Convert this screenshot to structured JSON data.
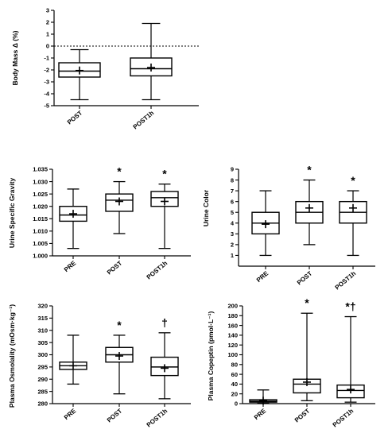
{
  "chart_data": [
    {
      "type": "boxplot",
      "ylabel": "Body Mass Δ (%)",
      "ylim": [
        -5,
        3
      ],
      "yticks": [
        3,
        2,
        1,
        0,
        -1,
        -2,
        -3,
        -4,
        -5
      ],
      "reference_line": 0,
      "categories": [
        "POST",
        "POST1h"
      ],
      "boxes": [
        {
          "min": -4.5,
          "q1": -2.6,
          "median": -2.1,
          "q3": -1.4,
          "max": -0.3,
          "mean": -2.05,
          "sig": ""
        },
        {
          "min": -4.5,
          "q1": -2.5,
          "median": -1.9,
          "q3": -1.0,
          "max": 1.9,
          "mean": -1.8,
          "sig": ""
        }
      ]
    },
    {
      "type": "boxplot",
      "ylabel": "Urine Specific Gravity",
      "ylim": [
        1.0,
        1.035
      ],
      "yticks": [
        "1.035",
        "1.030",
        "1.025",
        "1.020",
        "1.015",
        "1.010",
        "1.005",
        "1.000"
      ],
      "categories": [
        "PRE",
        "POST",
        "POST1h"
      ],
      "boxes": [
        {
          "min": 1.003,
          "q1": 1.014,
          "median": 1.0165,
          "q3": 1.02,
          "max": 1.027,
          "mean": 1.017,
          "sig": ""
        },
        {
          "min": 1.009,
          "q1": 1.018,
          "median": 1.0225,
          "q3": 1.025,
          "max": 1.03,
          "mean": 1.022,
          "sig": "*"
        },
        {
          "min": 1.003,
          "q1": 1.02,
          "median": 1.0235,
          "q3": 1.026,
          "max": 1.029,
          "mean": 1.022,
          "sig": "*"
        }
      ]
    },
    {
      "type": "boxplot",
      "ylabel": "Urine Color",
      "ylim": [
        0,
        9
      ],
      "yticks": [
        "9",
        "8",
        "7",
        "6",
        "5",
        "4",
        "3",
        "2",
        "1"
      ],
      "categories": [
        "PRE",
        "POST",
        "POST1h"
      ],
      "boxes": [
        {
          "min": 1,
          "q1": 3,
          "median": 4,
          "q3": 5,
          "max": 7,
          "mean": 3.9,
          "sig": ""
        },
        {
          "min": 2,
          "q1": 4,
          "median": 5,
          "q3": 6,
          "max": 8,
          "mean": 5.4,
          "sig": "*"
        },
        {
          "min": 1,
          "q1": 4,
          "median": 5,
          "q3": 6,
          "max": 7,
          "mean": 5.4,
          "sig": "*"
        }
      ]
    },
    {
      "type": "boxplot",
      "ylabel": "Plasma Osmolality (mOsm·kg⁻¹)",
      "ylim": [
        280,
        320
      ],
      "yticks": [
        "320",
        "315",
        "310",
        "305",
        "300",
        "295",
        "290",
        "285",
        "280"
      ],
      "categories": [
        "PRE",
        "POST",
        "POST1h"
      ],
      "boxes": [
        {
          "min": 288,
          "q1": 294,
          "median": 295.5,
          "q3": 297,
          "max": 308,
          "mean": 295.5,
          "sig": ""
        },
        {
          "min": 284,
          "q1": 297,
          "median": 300,
          "q3": 303,
          "max": 308,
          "mean": 299.5,
          "sig": "*"
        },
        {
          "min": 282,
          "q1": 291.5,
          "median": 295,
          "q3": 299,
          "max": 309,
          "mean": 294.5,
          "sig": "†"
        }
      ]
    },
    {
      "type": "boxplot",
      "ylabel": "Plasma Copeptin (pmol·L⁻¹)",
      "ylim": [
        0,
        200
      ],
      "yticks": [
        "200",
        "180",
        "160",
        "140",
        "120",
        "100",
        "80",
        "60",
        "40",
        "20",
        "0"
      ],
      "categories": [
        "PRE",
        "POST",
        "POST1h"
      ],
      "boxes": [
        {
          "min": 1,
          "q1": 3,
          "median": 5,
          "q3": 8,
          "max": 28,
          "mean": 6,
          "sig": ""
        },
        {
          "min": 6,
          "q1": 22,
          "median": 40,
          "q3": 50,
          "max": 185,
          "mean": 44,
          "sig": "*"
        },
        {
          "min": 3,
          "q1": 12,
          "median": 27,
          "q3": 38,
          "max": 178,
          "mean": 29,
          "sig": "*†"
        }
      ]
    }
  ]
}
